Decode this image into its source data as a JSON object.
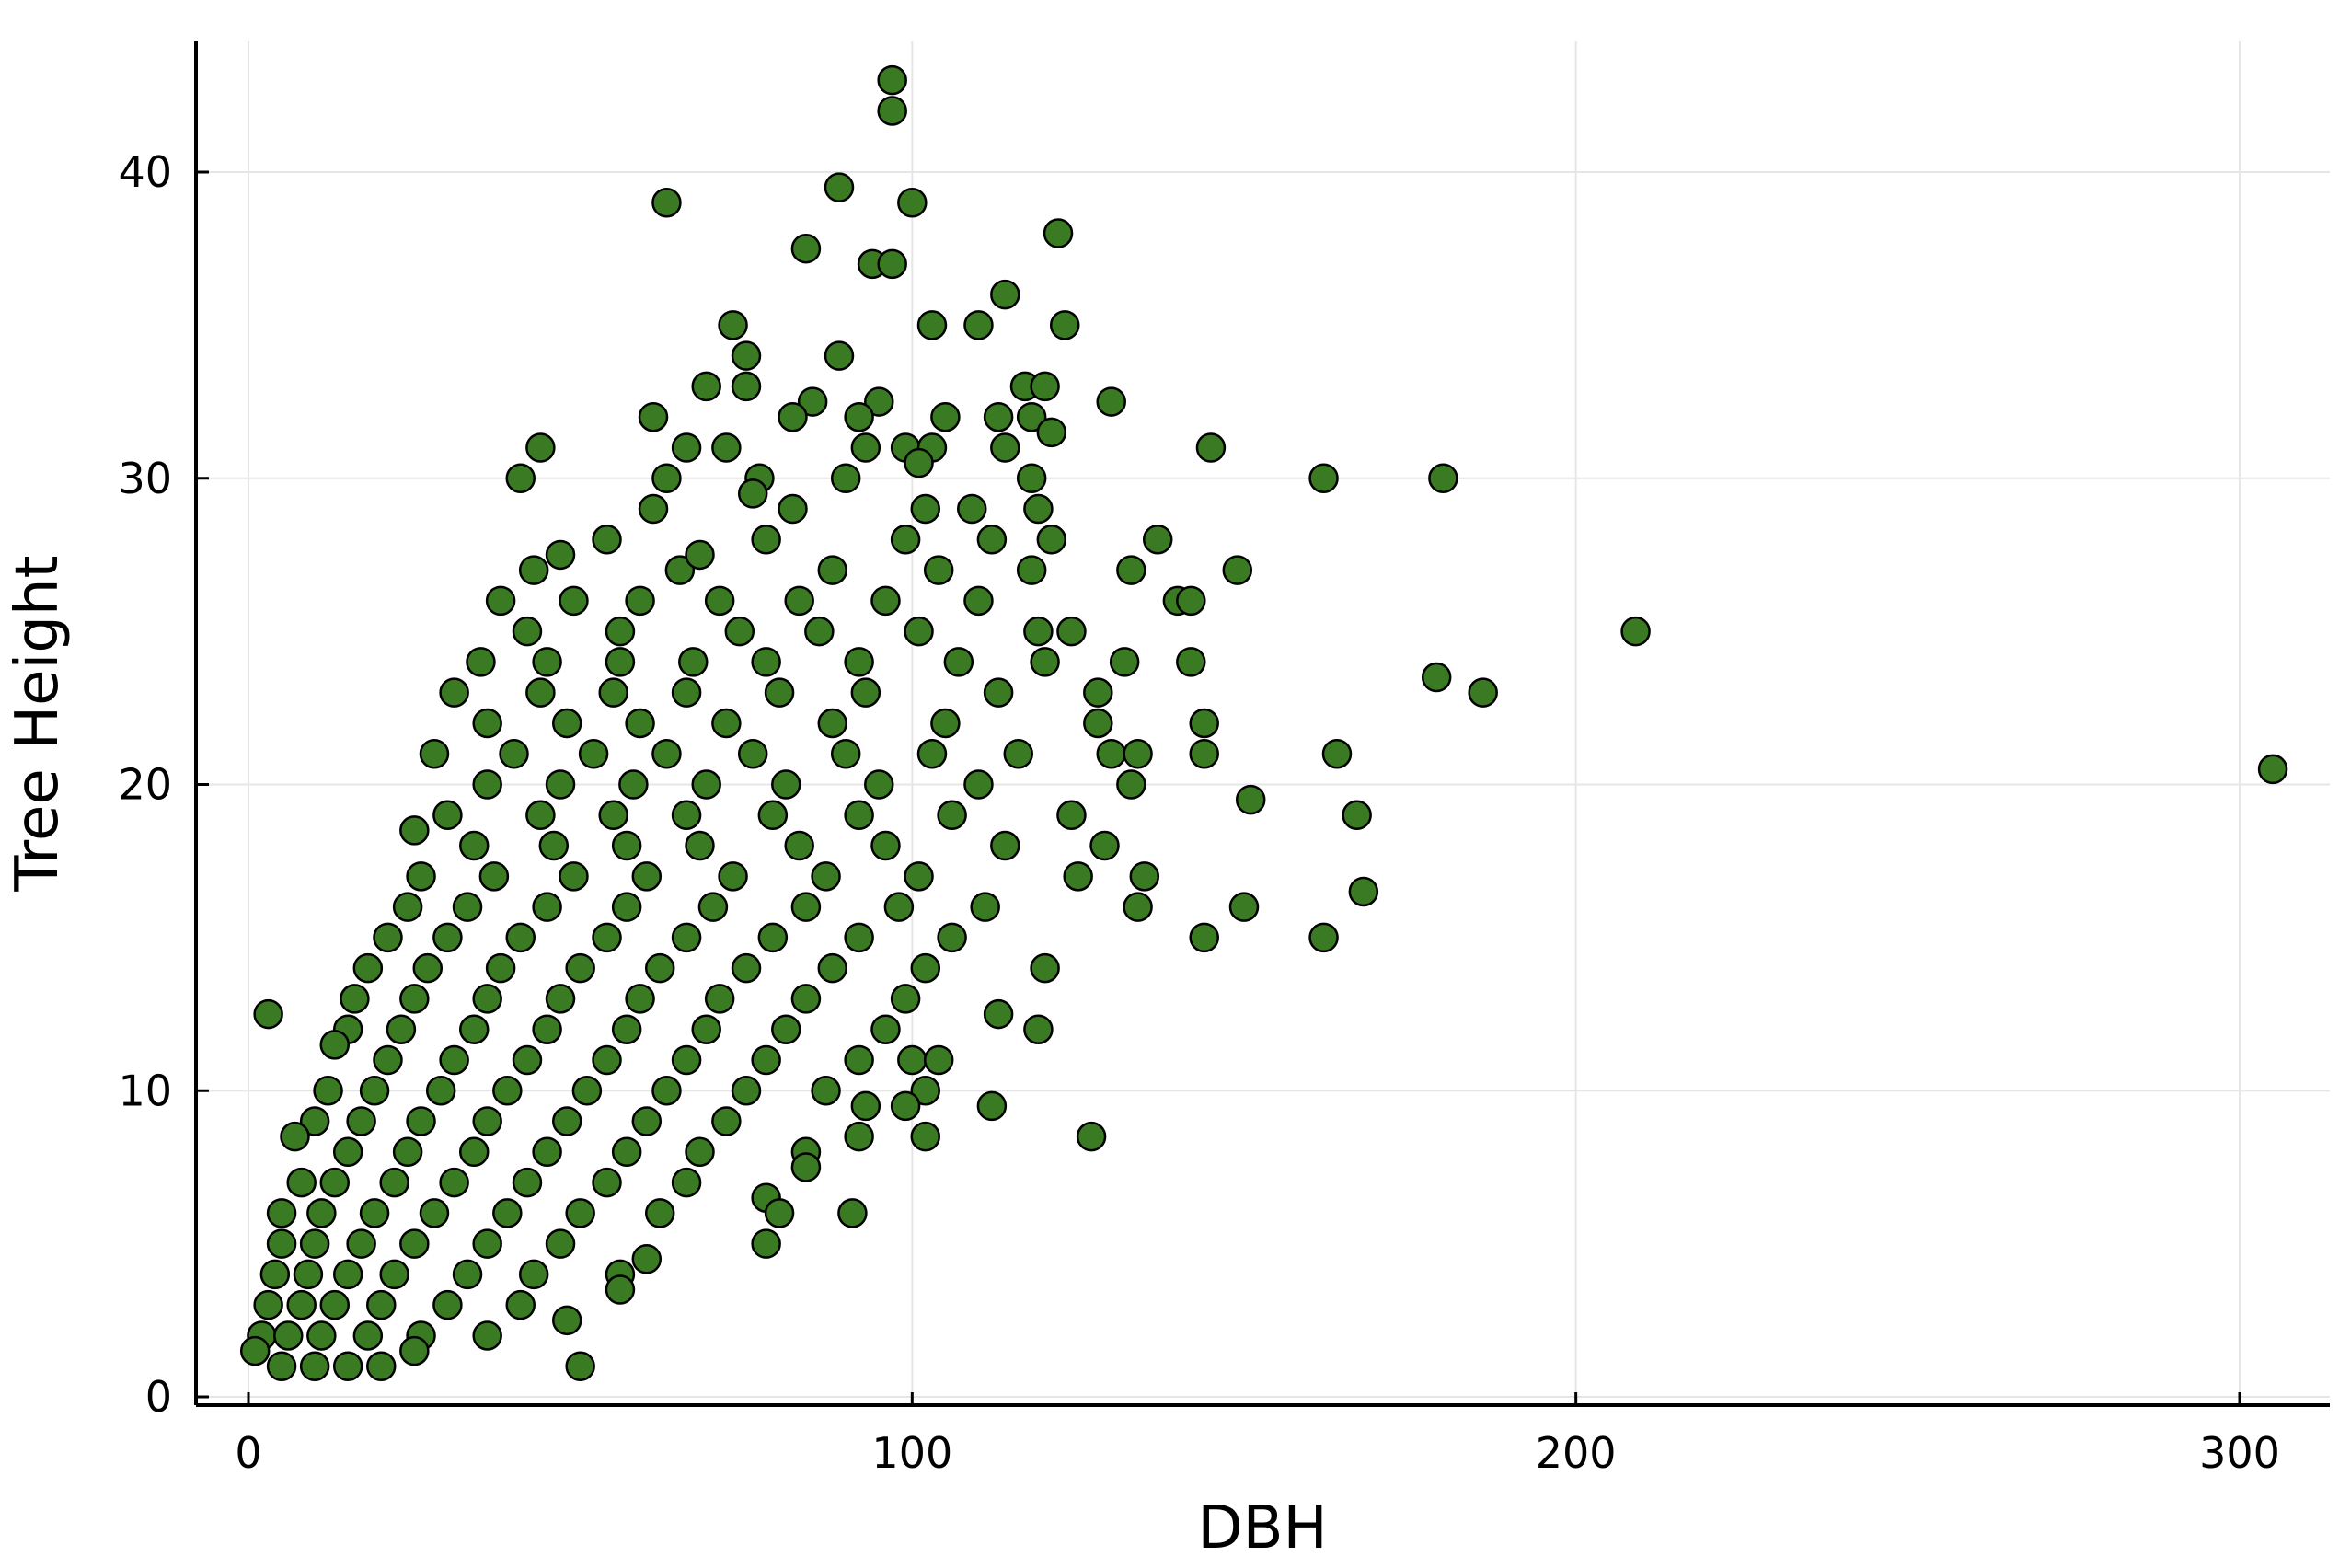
{
  "chart_data": {
    "type": "scatter",
    "title": "",
    "xlabel": "DBH",
    "ylabel": "Tree Height",
    "xlim": [
      -8,
      314
    ],
    "ylim": [
      -0.3,
      44
    ],
    "x_ticks": [
      0,
      100,
      200,
      300
    ],
    "y_ticks": [
      0,
      10,
      20,
      30,
      40
    ],
    "x_tick_labels": [
      "0",
      "100",
      "200",
      "300"
    ],
    "y_tick_labels": [
      "0",
      "10",
      "20",
      "30",
      "40"
    ],
    "grid": true,
    "legend": "none",
    "marker_color": "#3a7a23",
    "marker_edge_color": "#000000",
    "series": [
      {
        "points": [
          [
            97,
            43
          ],
          [
            97,
            42
          ],
          [
            63,
            39
          ],
          [
            89,
            39.5
          ],
          [
            100,
            39
          ],
          [
            84,
            37.5
          ],
          [
            94,
            37
          ],
          [
            97,
            37
          ],
          [
            122,
            38
          ],
          [
            73,
            35
          ],
          [
            110,
            35
          ],
          [
            103,
            35
          ],
          [
            114,
            36
          ],
          [
            123,
            35
          ],
          [
            75,
            34
          ],
          [
            89,
            34
          ],
          [
            75,
            33
          ],
          [
            69,
            33
          ],
          [
            117,
            33
          ],
          [
            120,
            33
          ],
          [
            130,
            32.5
          ],
          [
            85,
            32.5
          ],
          [
            82,
            32
          ],
          [
            61,
            32
          ],
          [
            95,
            32.5
          ],
          [
            92,
            32
          ],
          [
            105,
            32
          ],
          [
            113,
            32
          ],
          [
            118,
            32
          ],
          [
            44,
            31
          ],
          [
            66,
            31
          ],
          [
            72,
            31
          ],
          [
            93,
            31
          ],
          [
            99,
            31
          ],
          [
            103,
            31
          ],
          [
            114,
            31
          ],
          [
            121,
            31.5
          ],
          [
            145,
            31
          ],
          [
            41,
            30
          ],
          [
            63,
            30
          ],
          [
            77,
            30
          ],
          [
            90,
            30
          ],
          [
            101,
            30.5
          ],
          [
            118,
            30
          ],
          [
            162,
            30
          ],
          [
            180,
            30
          ],
          [
            61,
            29
          ],
          [
            76,
            29.5
          ],
          [
            82,
            29
          ],
          [
            102,
            29
          ],
          [
            109,
            29
          ],
          [
            119,
            29
          ],
          [
            54,
            28
          ],
          [
            78,
            28
          ],
          [
            99,
            28
          ],
          [
            112,
            28
          ],
          [
            121,
            28
          ],
          [
            137,
            28
          ],
          [
            43,
            27
          ],
          [
            47,
            27.5
          ],
          [
            65,
            27
          ],
          [
            68,
            27.5
          ],
          [
            88,
            27
          ],
          [
            104,
            27
          ],
          [
            118,
            27
          ],
          [
            133,
            27
          ],
          [
            149,
            27
          ],
          [
            38,
            26
          ],
          [
            49,
            26
          ],
          [
            59,
            26
          ],
          [
            71,
            26
          ],
          [
            83,
            26
          ],
          [
            96,
            26
          ],
          [
            110,
            26
          ],
          [
            140,
            26
          ],
          [
            142,
            26
          ],
          [
            42,
            25
          ],
          [
            56,
            25
          ],
          [
            74,
            25
          ],
          [
            86,
            25
          ],
          [
            101,
            25
          ],
          [
            119,
            25
          ],
          [
            124,
            25
          ],
          [
            209,
            25
          ],
          [
            35,
            24
          ],
          [
            45,
            24
          ],
          [
            56,
            24
          ],
          [
            67,
            24
          ],
          [
            78,
            24
          ],
          [
            92,
            24
          ],
          [
            107,
            24
          ],
          [
            120,
            24
          ],
          [
            132,
            24
          ],
          [
            142,
            24
          ],
          [
            31,
            23
          ],
          [
            44,
            23
          ],
          [
            55,
            23
          ],
          [
            66,
            23
          ],
          [
            80,
            23
          ],
          [
            93,
            23
          ],
          [
            113,
            23
          ],
          [
            128,
            23
          ],
          [
            179,
            23.5
          ],
          [
            186,
            23
          ],
          [
            36,
            22
          ],
          [
            48,
            22
          ],
          [
            59,
            22
          ],
          [
            72,
            22
          ],
          [
            88,
            22
          ],
          [
            105,
            22
          ],
          [
            128,
            22
          ],
          [
            144,
            22
          ],
          [
            28,
            21
          ],
          [
            40,
            21
          ],
          [
            52,
            21
          ],
          [
            63,
            21
          ],
          [
            76,
            21
          ],
          [
            90,
            21
          ],
          [
            103,
            21
          ],
          [
            116,
            21
          ],
          [
            130,
            21
          ],
          [
            134,
            21
          ],
          [
            144,
            21
          ],
          [
            164,
            21
          ],
          [
            36,
            20
          ],
          [
            47,
            20
          ],
          [
            58,
            20
          ],
          [
            69,
            20
          ],
          [
            81,
            20
          ],
          [
            95,
            20
          ],
          [
            110,
            20
          ],
          [
            133,
            20
          ],
          [
            305,
            20.5
          ],
          [
            30,
            19
          ],
          [
            44,
            19
          ],
          [
            55,
            19
          ],
          [
            66,
            19
          ],
          [
            79,
            19
          ],
          [
            92,
            19
          ],
          [
            106,
            19
          ],
          [
            124,
            19
          ],
          [
            151,
            19.5
          ],
          [
            167,
            19
          ],
          [
            25,
            18.5
          ],
          [
            34,
            18
          ],
          [
            46,
            18
          ],
          [
            57,
            18
          ],
          [
            68,
            18
          ],
          [
            83,
            18
          ],
          [
            96,
            18
          ],
          [
            114,
            18
          ],
          [
            129,
            18
          ],
          [
            26,
            17
          ],
          [
            37,
            17
          ],
          [
            49,
            17
          ],
          [
            60,
            17
          ],
          [
            73,
            17
          ],
          [
            87,
            17
          ],
          [
            101,
            17
          ],
          [
            125,
            17
          ],
          [
            135,
            17
          ],
          [
            24,
            16
          ],
          [
            33,
            16
          ],
          [
            45,
            16
          ],
          [
            57,
            16
          ],
          [
            70,
            16
          ],
          [
            84,
            16
          ],
          [
            98,
            16
          ],
          [
            111,
            16
          ],
          [
            134,
            16
          ],
          [
            150,
            16
          ],
          [
            168,
            16.5
          ],
          [
            21,
            15
          ],
          [
            30,
            15
          ],
          [
            41,
            15
          ],
          [
            54,
            15
          ],
          [
            66,
            15
          ],
          [
            79,
            15
          ],
          [
            92,
            15
          ],
          [
            106,
            15
          ],
          [
            144,
            15
          ],
          [
            162,
            15
          ],
          [
            18,
            14
          ],
          [
            27,
            14
          ],
          [
            38,
            14
          ],
          [
            50,
            14
          ],
          [
            62,
            14
          ],
          [
            75,
            14
          ],
          [
            88,
            14
          ],
          [
            102,
            14
          ],
          [
            120,
            14
          ],
          [
            16,
            13
          ],
          [
            25,
            13
          ],
          [
            36,
            13
          ],
          [
            47,
            13
          ],
          [
            59,
            13
          ],
          [
            71,
            13
          ],
          [
            84,
            13
          ],
          [
            99,
            13
          ],
          [
            3,
            12.5
          ],
          [
            15,
            12
          ],
          [
            23,
            12
          ],
          [
            34,
            12
          ],
          [
            45,
            12
          ],
          [
            57,
            12
          ],
          [
            69,
            12
          ],
          [
            81,
            12
          ],
          [
            96,
            12
          ],
          [
            113,
            12.5
          ],
          [
            119,
            12
          ],
          [
            13,
            11.5
          ],
          [
            21,
            11
          ],
          [
            31,
            11
          ],
          [
            42,
            11
          ],
          [
            54,
            11
          ],
          [
            66,
            11
          ],
          [
            78,
            11
          ],
          [
            92,
            11
          ],
          [
            100,
            11
          ],
          [
            104,
            11
          ],
          [
            12,
            10
          ],
          [
            19,
            10
          ],
          [
            29,
            10
          ],
          [
            39,
            10
          ],
          [
            51,
            10
          ],
          [
            63,
            10
          ],
          [
            75,
            10
          ],
          [
            87,
            10
          ],
          [
            102,
            10
          ],
          [
            10,
            9
          ],
          [
            17,
            9
          ],
          [
            26,
            9
          ],
          [
            36,
            9
          ],
          [
            48,
            9
          ],
          [
            60,
            9
          ],
          [
            72,
            9
          ],
          [
            93,
            9.5
          ],
          [
            99,
            9.5
          ],
          [
            112,
            9.5
          ],
          [
            7,
            8.5
          ],
          [
            15,
            8
          ],
          [
            24,
            8
          ],
          [
            34,
            8
          ],
          [
            45,
            8
          ],
          [
            57,
            8
          ],
          [
            68,
            8
          ],
          [
            84,
            8
          ],
          [
            92,
            8.5
          ],
          [
            102,
            8.5
          ],
          [
            127,
            8.5
          ],
          [
            8,
            7
          ],
          [
            13,
            7
          ],
          [
            22,
            7
          ],
          [
            31,
            7
          ],
          [
            42,
            7
          ],
          [
            54,
            7
          ],
          [
            66,
            7
          ],
          [
            78,
            6.5
          ],
          [
            84,
            7.5
          ],
          [
            5,
            6
          ],
          [
            11,
            6
          ],
          [
            19,
            6
          ],
          [
            28,
            6
          ],
          [
            39,
            6
          ],
          [
            50,
            6
          ],
          [
            62,
            6
          ],
          [
            80,
            6
          ],
          [
            91,
            6
          ],
          [
            5,
            5
          ],
          [
            10,
            5
          ],
          [
            17,
            5
          ],
          [
            25,
            5
          ],
          [
            36,
            5
          ],
          [
            47,
            5
          ],
          [
            78,
            5
          ],
          [
            4,
            4
          ],
          [
            9,
            4
          ],
          [
            15,
            4
          ],
          [
            22,
            4
          ],
          [
            33,
            4
          ],
          [
            43,
            4
          ],
          [
            56,
            4
          ],
          [
            60,
            4.5
          ],
          [
            3,
            3
          ],
          [
            8,
            3
          ],
          [
            13,
            3
          ],
          [
            20,
            3
          ],
          [
            30,
            3
          ],
          [
            41,
            3
          ],
          [
            56,
            3.5
          ],
          [
            2,
            2
          ],
          [
            6,
            2
          ],
          [
            11,
            2
          ],
          [
            18,
            2
          ],
          [
            26,
            2
          ],
          [
            36,
            2
          ],
          [
            48,
            2.5
          ],
          [
            1,
            1.5
          ],
          [
            5,
            1
          ],
          [
            10,
            1
          ],
          [
            15,
            1
          ],
          [
            20,
            1
          ],
          [
            25,
            1.5
          ],
          [
            50,
            1
          ]
        ]
      }
    ]
  }
}
